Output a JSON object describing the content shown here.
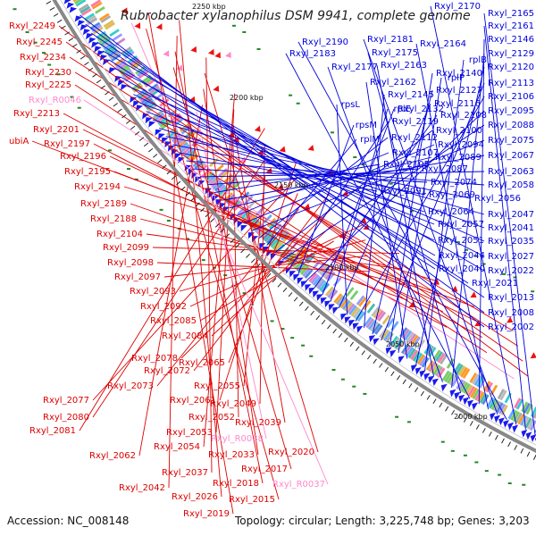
{
  "title": "Rubrobacter xylanophilus DSM 9941, complete genome",
  "accession": "Accession: NC_008148",
  "topology": "Topology: circular; Length: 3,225,748 bp; Genes: 3,203",
  "colors": {
    "red": "#dd0000",
    "blue": "#0000dd",
    "pink": "#ff88cc",
    "backbone": "#888888",
    "tick": "#228822"
  },
  "position_labels": [
    "2250 kbp",
    "2200 kbp",
    "2150 kbp",
    "2100 kbp",
    "2050 kbp",
    "2000 kbp"
  ],
  "red_labels": [
    "Rxyl_2249",
    "Rxyl_2245",
    "Rxyl_2234",
    "Rxyl_2230",
    "Rxyl_2225",
    "Rxyl_2213",
    "Rxyl_2201",
    "ubiA",
    "Rxyl_2197",
    "Rxyl_2196",
    "Rxyl_2195",
    "Rxyl_2194",
    "Rxyl_2189",
    "Rxyl_2188",
    "Rxyl_2104",
    "Rxyl_2099",
    "Rxyl_2098",
    "Rxyl_2097",
    "Rxyl_2093",
    "Rxyl_2092",
    "Rxyl_2085",
    "Rxyl_2084",
    "Rxyl_2078",
    "Rxyl_2072",
    "Rxyl_2073",
    "Rxyl_2065",
    "Rxyl_2077",
    "Rxyl_2061",
    "Rxyl_2055",
    "Rxyl_2080",
    "Rxyl_2049",
    "Rxyl_2081",
    "Rxyl_2052",
    "Rxyl_2039",
    "Rxyl_2053",
    "Rxyl_2054",
    "Rxyl_2062",
    "Rxyl_2033",
    "Rxyl_2020",
    "Rxyl_2037",
    "Rxyl_2017",
    "Rxyl_2018",
    "Rxyl_2042",
    "Rxyl_2026",
    "Rxyl_2015",
    "Rxyl_2019"
  ],
  "pink_labels": [
    "Rxyl_R0046",
    "Rxyl_R0038",
    "Rxyl_R0037"
  ],
  "blue_labels": [
    "Rxyl_2165",
    "Rxyl_2161",
    "Rxyl_2170",
    "Rxyl_2190",
    "Rxyl_2181",
    "Rxyl_2164",
    "Rxyl_2146",
    "Rxyl_2183",
    "Rxyl_2175",
    "Rxyl_2129",
    "Rxyl_2177",
    "Rxyl_2163",
    "rplB",
    "Rxyl_2120",
    "Rxyl_2162",
    "rplP",
    "Rxyl_2140",
    "Rxyl_2113",
    "Rxyl_2127",
    "Rxyl_2145",
    "Rxyl_2106",
    "rpsL",
    "Rxyl_2116",
    "rplE",
    "Rxyl_2132",
    "Rxyl_2108",
    "Rxyl_2095",
    "rpsM",
    "Rxyl_2119",
    "Rxyl_2088",
    "Rxyl_2100",
    "rplM",
    "Rxyl_2112",
    "Rxyl_2075",
    "Rxyl_2094",
    "Rxyl_2107",
    "Rxyl_2089",
    "Rxyl_2067",
    "Rxyl_2105",
    "Rxyl_2087",
    "Rxyl_2063",
    "Rxyl_2074",
    "Rxyl_2058",
    "Rxyl_2091",
    "Rxyl_2069",
    "Rxyl_2056",
    "Rxyl_2064",
    "Rxyl_2047",
    "Rxyl_2057",
    "Rxyl_2041",
    "Rxyl_2051",
    "Rxyl_2035",
    "Rxyl_2044",
    "Rxyl_2027",
    "Rxyl_2040",
    "Rxyl_2022",
    "Rxyl_2021",
    "Rxyl_2013",
    "Rxyl_2008",
    "Rxyl_2002"
  ]
}
